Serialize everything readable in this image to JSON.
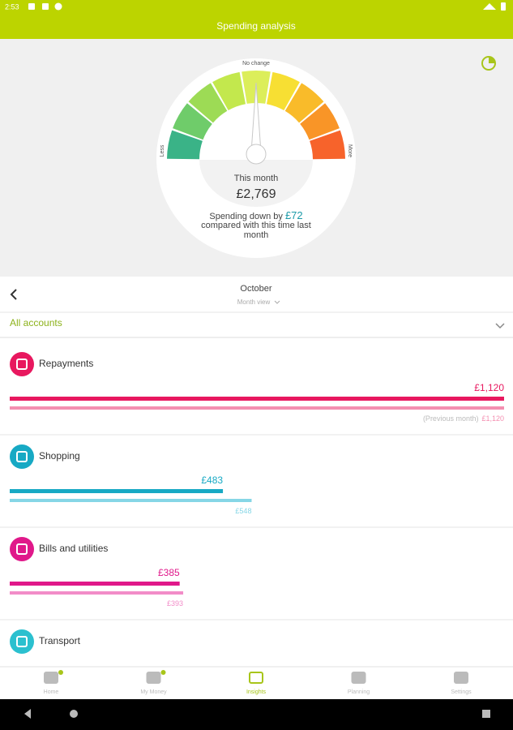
{
  "status_bar": {
    "time": "2:53"
  },
  "header": {
    "title": "Spending analysis"
  },
  "gauge": {
    "left_label": "Less",
    "top_label": "No change",
    "right_label": "More",
    "period": "This month",
    "total": "£2,769",
    "summary_prefix": "Spending down by",
    "summary_amount": "£72",
    "summary_suffix": "compared with this time last month"
  },
  "period": {
    "month": "October",
    "view": "Month view"
  },
  "account_filter": "All accounts",
  "previous_note": "(Previous month)",
  "categories": [
    {
      "name": "Repayments",
      "color": "#e8185f",
      "light_color": "#f48fb1",
      "current": 1120,
      "current_label": "£1,120",
      "previous": 1120,
      "previous_label": "£1,120"
    },
    {
      "name": "Shopping",
      "color": "#17a9c4",
      "light_color": "#86d6e6",
      "current": 483,
      "current_label": "£483",
      "previous": 548,
      "previous_label": "£548"
    },
    {
      "name": "Bills and utilities",
      "color": "#e0188a",
      "light_color": "#f28cc8",
      "current": 385,
      "current_label": "£385",
      "previous": 393,
      "previous_label": "£393"
    },
    {
      "name": "Transport",
      "color": "#2bc0cf"
    }
  ],
  "nav": [
    "Home",
    "My Money",
    "Insights",
    "Planning",
    "Settings"
  ]
}
